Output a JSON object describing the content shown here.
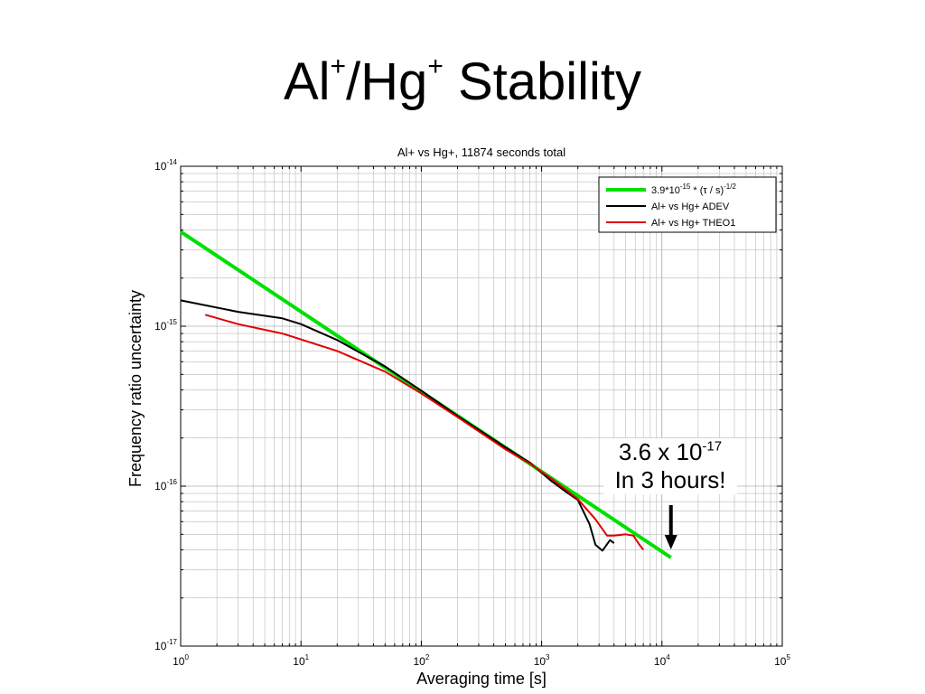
{
  "slide": {
    "title_main_1": "Al",
    "title_sup_1": "+",
    "title_main_2": "/Hg",
    "title_sup_2": "+",
    "title_main_3": " Stability"
  },
  "callout": {
    "line1_main": "3.6 x 10",
    "line1_sup": "-17",
    "line2": "In 3 hours!"
  },
  "chart_data": {
    "type": "line",
    "title": "Al+ vs Hg+, 11874 seconds total",
    "xlabel": "Averaging time [s]",
    "ylabel": "Frequency ratio uncertainty",
    "xscale": "log",
    "yscale": "log",
    "xlim": [
      1,
      100000
    ],
    "ylim": [
      1e-17,
      1e-14
    ],
    "grid": true,
    "legend_position": "top-right",
    "x_ticks": [
      {
        "base": "10",
        "exp": "0"
      },
      {
        "base": "10",
        "exp": "1"
      },
      {
        "base": "10",
        "exp": "2"
      },
      {
        "base": "10",
        "exp": "3"
      },
      {
        "base": "10",
        "exp": "4"
      },
      {
        "base": "10",
        "exp": "5"
      }
    ],
    "y_ticks": [
      {
        "base": "10",
        "exp": "-14"
      },
      {
        "base": "10",
        "exp": "-15"
      },
      {
        "base": "10",
        "exp": "-16"
      },
      {
        "base": "10",
        "exp": "-17"
      }
    ],
    "series": [
      {
        "name": "3.9*10^-15 * (τ / s)^-1/2",
        "legend": {
          "a": "3.9*10",
          "a_sup": "-15",
          "b": " * (τ / s)",
          "b_sup": "-1/2"
        },
        "color": "#00e000",
        "x": [
          1,
          11874
        ],
        "y": [
          3.9e-15,
          3.58e-17
        ]
      },
      {
        "name": "Al+ vs Hg+ ADEV",
        "color": "#000000",
        "x": [
          1,
          3,
          7,
          10,
          20,
          50,
          100,
          200,
          500,
          800,
          1200,
          1600,
          2000,
          2500,
          2800,
          3200,
          3700,
          4000
        ],
        "y": [
          1.45e-15,
          1.23e-15,
          1.12e-15,
          1.03e-15,
          8.2e-16,
          5.6e-16,
          3.95e-16,
          2.75e-16,
          1.75e-16,
          1.4e-16,
          1.08e-16,
          9.2e-17,
          8.2e-17,
          5.8e-17,
          4.3e-17,
          3.95e-17,
          4.6e-17,
          4.4e-17
        ]
      },
      {
        "name": "Al+ vs Hg+ THEO1",
        "color": "#e00000",
        "x": [
          1.6,
          3,
          7,
          20,
          50,
          100,
          200,
          500,
          800,
          1200,
          2000,
          2800,
          3500,
          4000,
          5000,
          5800,
          6500,
          7000
        ],
        "y": [
          1.18e-15,
          1.03e-15,
          9e-16,
          7e-16,
          5.2e-16,
          3.8e-16,
          2.7e-16,
          1.7e-16,
          1.38e-16,
          1.12e-16,
          8.3e-17,
          6.2e-17,
          4.9e-17,
          4.9e-17,
          5e-17,
          4.9e-17,
          4.3e-17,
          4e-17
        ]
      }
    ],
    "annotation_arrow_x": 11874
  }
}
